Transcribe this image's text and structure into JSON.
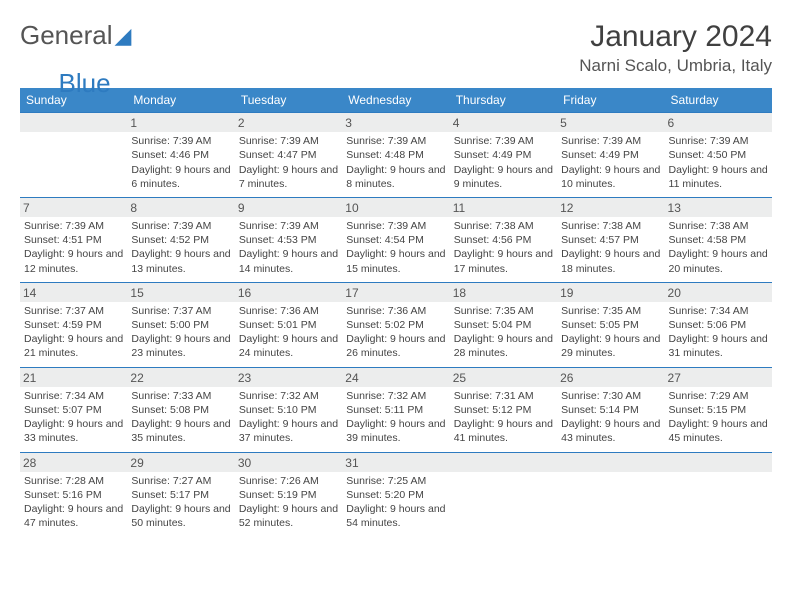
{
  "brand": {
    "name1": "General",
    "name2": "Blue"
  },
  "title": "January 2024",
  "location": "Narni Scalo, Umbria, Italy",
  "colors": {
    "header_bg": "#3a87c8",
    "header_text": "#ffffff",
    "border": "#2e7bc0",
    "daynum_bg": "#eceded",
    "text": "#444444"
  },
  "fonts": {
    "title_size": 30,
    "location_size": 17,
    "dayhead_size": 12,
    "cell_size": 10.5
  },
  "daynames": [
    "Sunday",
    "Monday",
    "Tuesday",
    "Wednesday",
    "Thursday",
    "Friday",
    "Saturday"
  ],
  "weeks": [
    [
      null,
      {
        "n": "1",
        "sr": "7:39 AM",
        "ss": "4:46 PM",
        "dl": "9 hours and 6 minutes."
      },
      {
        "n": "2",
        "sr": "7:39 AM",
        "ss": "4:47 PM",
        "dl": "9 hours and 7 minutes."
      },
      {
        "n": "3",
        "sr": "7:39 AM",
        "ss": "4:48 PM",
        "dl": "9 hours and 8 minutes."
      },
      {
        "n": "4",
        "sr": "7:39 AM",
        "ss": "4:49 PM",
        "dl": "9 hours and 9 minutes."
      },
      {
        "n": "5",
        "sr": "7:39 AM",
        "ss": "4:49 PM",
        "dl": "9 hours and 10 minutes."
      },
      {
        "n": "6",
        "sr": "7:39 AM",
        "ss": "4:50 PM",
        "dl": "9 hours and 11 minutes."
      }
    ],
    [
      {
        "n": "7",
        "sr": "7:39 AM",
        "ss": "4:51 PM",
        "dl": "9 hours and 12 minutes."
      },
      {
        "n": "8",
        "sr": "7:39 AM",
        "ss": "4:52 PM",
        "dl": "9 hours and 13 minutes."
      },
      {
        "n": "9",
        "sr": "7:39 AM",
        "ss": "4:53 PM",
        "dl": "9 hours and 14 minutes."
      },
      {
        "n": "10",
        "sr": "7:39 AM",
        "ss": "4:54 PM",
        "dl": "9 hours and 15 minutes."
      },
      {
        "n": "11",
        "sr": "7:38 AM",
        "ss": "4:56 PM",
        "dl": "9 hours and 17 minutes."
      },
      {
        "n": "12",
        "sr": "7:38 AM",
        "ss": "4:57 PM",
        "dl": "9 hours and 18 minutes."
      },
      {
        "n": "13",
        "sr": "7:38 AM",
        "ss": "4:58 PM",
        "dl": "9 hours and 20 minutes."
      }
    ],
    [
      {
        "n": "14",
        "sr": "7:37 AM",
        "ss": "4:59 PM",
        "dl": "9 hours and 21 minutes."
      },
      {
        "n": "15",
        "sr": "7:37 AM",
        "ss": "5:00 PM",
        "dl": "9 hours and 23 minutes."
      },
      {
        "n": "16",
        "sr": "7:36 AM",
        "ss": "5:01 PM",
        "dl": "9 hours and 24 minutes."
      },
      {
        "n": "17",
        "sr": "7:36 AM",
        "ss": "5:02 PM",
        "dl": "9 hours and 26 minutes."
      },
      {
        "n": "18",
        "sr": "7:35 AM",
        "ss": "5:04 PM",
        "dl": "9 hours and 28 minutes."
      },
      {
        "n": "19",
        "sr": "7:35 AM",
        "ss": "5:05 PM",
        "dl": "9 hours and 29 minutes."
      },
      {
        "n": "20",
        "sr": "7:34 AM",
        "ss": "5:06 PM",
        "dl": "9 hours and 31 minutes."
      }
    ],
    [
      {
        "n": "21",
        "sr": "7:34 AM",
        "ss": "5:07 PM",
        "dl": "9 hours and 33 minutes."
      },
      {
        "n": "22",
        "sr": "7:33 AM",
        "ss": "5:08 PM",
        "dl": "9 hours and 35 minutes."
      },
      {
        "n": "23",
        "sr": "7:32 AM",
        "ss": "5:10 PM",
        "dl": "9 hours and 37 minutes."
      },
      {
        "n": "24",
        "sr": "7:32 AM",
        "ss": "5:11 PM",
        "dl": "9 hours and 39 minutes."
      },
      {
        "n": "25",
        "sr": "7:31 AM",
        "ss": "5:12 PM",
        "dl": "9 hours and 41 minutes."
      },
      {
        "n": "26",
        "sr": "7:30 AM",
        "ss": "5:14 PM",
        "dl": "9 hours and 43 minutes."
      },
      {
        "n": "27",
        "sr": "7:29 AM",
        "ss": "5:15 PM",
        "dl": "9 hours and 45 minutes."
      }
    ],
    [
      {
        "n": "28",
        "sr": "7:28 AM",
        "ss": "5:16 PM",
        "dl": "9 hours and 47 minutes."
      },
      {
        "n": "29",
        "sr": "7:27 AM",
        "ss": "5:17 PM",
        "dl": "9 hours and 50 minutes."
      },
      {
        "n": "30",
        "sr": "7:26 AM",
        "ss": "5:19 PM",
        "dl": "9 hours and 52 minutes."
      },
      {
        "n": "31",
        "sr": "7:25 AM",
        "ss": "5:20 PM",
        "dl": "9 hours and 54 minutes."
      },
      null,
      null,
      null
    ]
  ],
  "labels": {
    "sunrise": "Sunrise:",
    "sunset": "Sunset:",
    "daylight": "Daylight:"
  }
}
